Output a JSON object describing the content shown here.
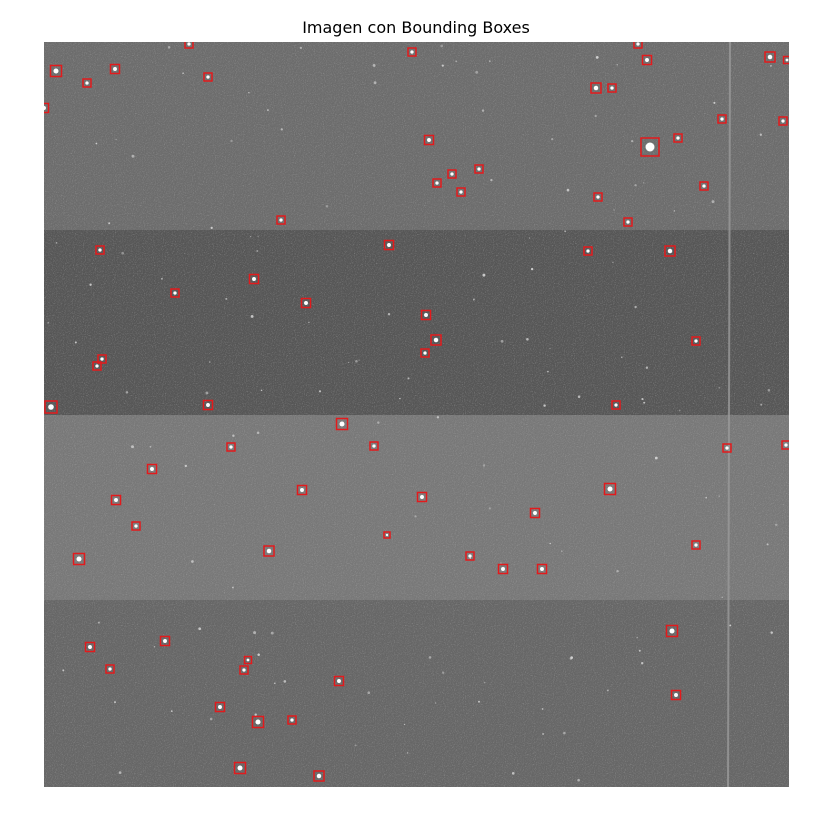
{
  "title": "Imagen con Bounding Boxes",
  "colors": {
    "box": "#e31a1c",
    "background_band_top": "#6e6e6e",
    "background_band_2": "#5a5a5a",
    "background_band_3": "#777777",
    "background_band_4": "#838383",
    "background_band_5": "#6a6a6a"
  },
  "objects": {
    "description": "stars marked with red square bounding boxes on a grayscale astronomical image",
    "count": 73
  }
}
